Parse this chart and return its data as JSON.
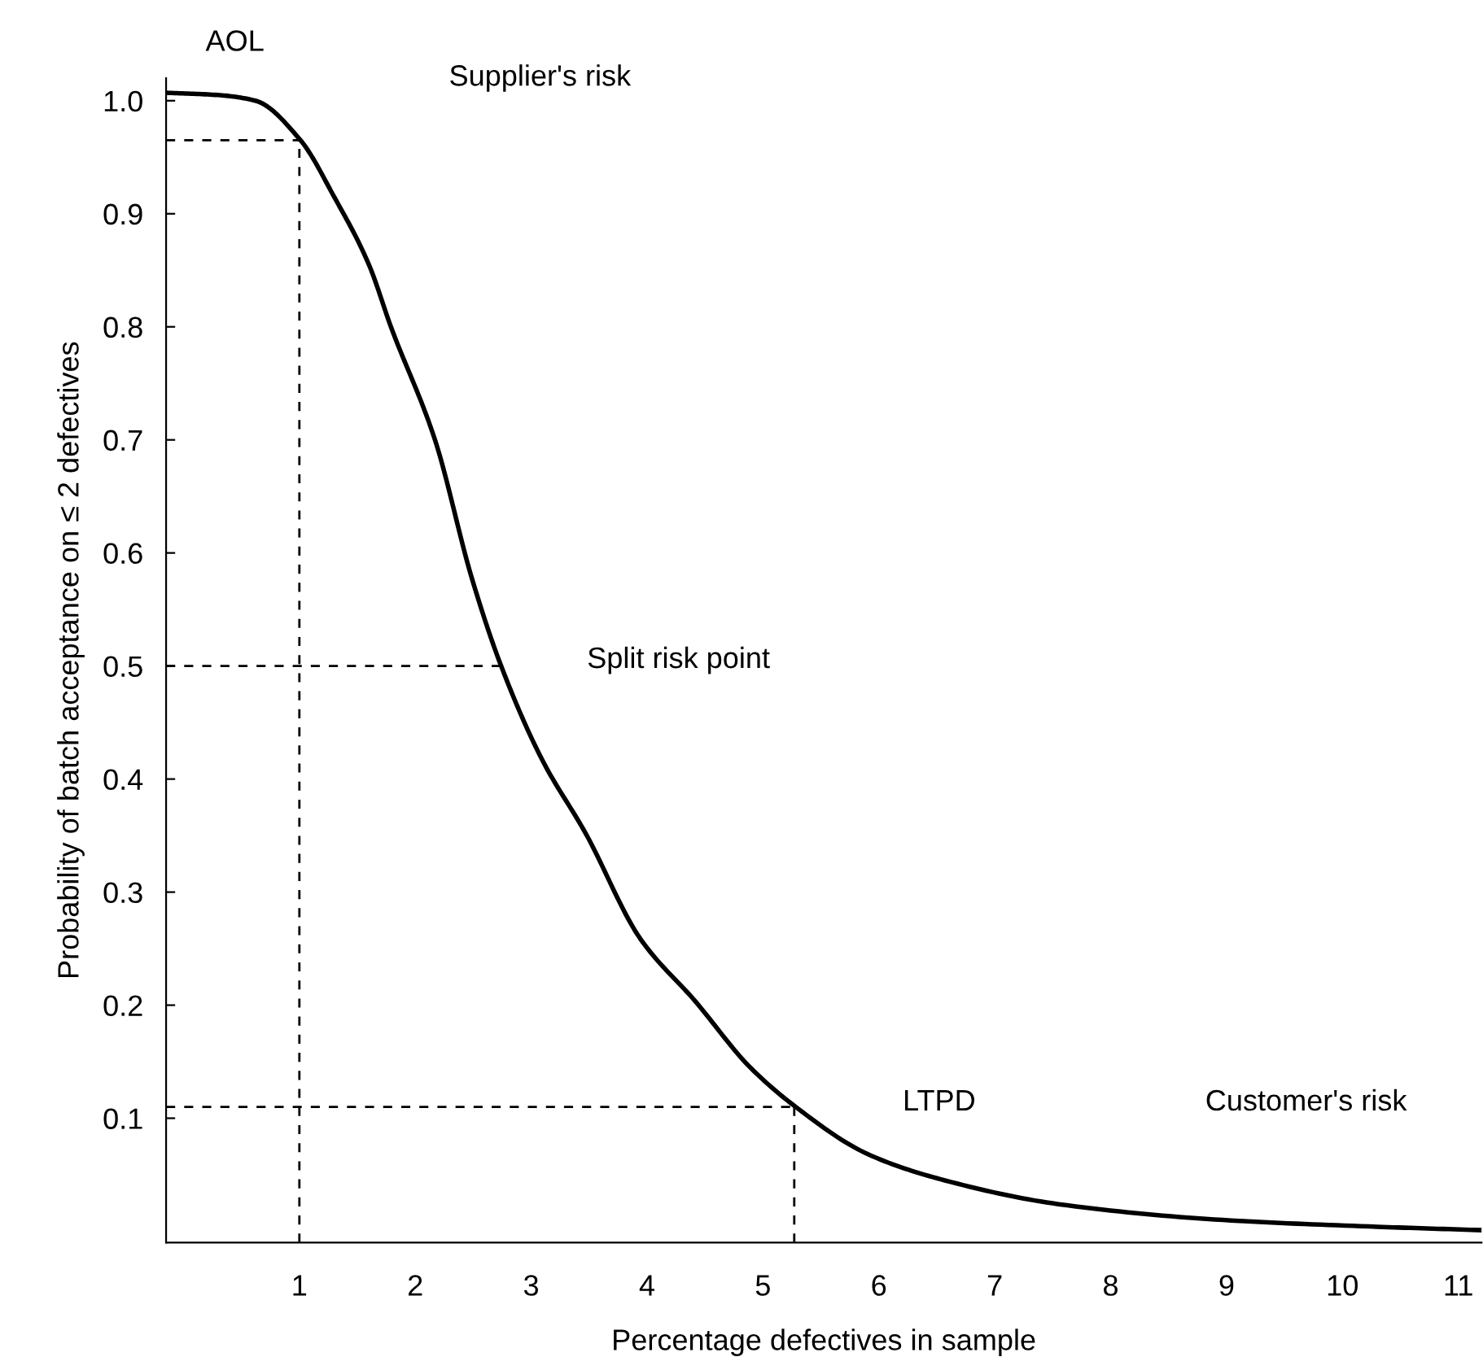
{
  "chart_data": {
    "type": "line",
    "xlabel": "Percentage defectives in sample",
    "ylabel": "Probability of batch acceptance on ≤ 2 defectives",
    "series": [
      {
        "color": "#000000",
        "x": [
          -0.15,
          0.3,
          0.62,
          1.01,
          1.3,
          1.6,
          1.79,
          2.17,
          2.49,
          2.73,
          3.09,
          3.47,
          3.94,
          4.42,
          4.88,
          5.27,
          5.91,
          6.57,
          7.55,
          8.97,
          10.3,
          11.2
        ],
        "values": [
          1.007,
          1.005,
          1.0,
          0.965,
          0.915,
          0.855,
          0.8,
          0.7,
          0.577,
          0.503,
          0.418,
          0.352,
          0.259,
          0.203,
          0.146,
          0.111,
          0.068,
          0.045,
          0.024,
          0.01,
          0.004,
          0.001
        ]
      }
    ],
    "xlim": [
      -0.15,
      11.2
    ],
    "ylim": [
      -0.01,
      1.02
    ],
    "xticks": [
      1,
      2,
      3,
      4,
      5,
      6,
      7,
      8,
      9,
      10,
      11
    ],
    "yticks": [
      0.1,
      0.2,
      0.3,
      0.4,
      0.5,
      0.6,
      0.7,
      0.8,
      0.9,
      {
        "value": 1.0,
        "label": "1.0"
      }
    ],
    "grid": false,
    "legend": false,
    "marker": "none",
    "line_style": "solid",
    "ref_lines": [
      {
        "axis": "y",
        "value": 0.965,
        "line_style": "dashed"
      },
      {
        "axis": "y",
        "value": 0.5,
        "line_style": "dashed"
      },
      {
        "axis": "y",
        "value": 0.11,
        "line_style": "dashed"
      },
      {
        "axis": "x",
        "value": 1,
        "line_style": "dashed"
      },
      {
        "axis": "x",
        "value": 5.27,
        "line_style": "dashed"
      }
    ],
    "annotations": [
      "AOL",
      "Supplier's risk",
      "Split risk point",
      "LTPD",
      "Customer's risk"
    ]
  }
}
